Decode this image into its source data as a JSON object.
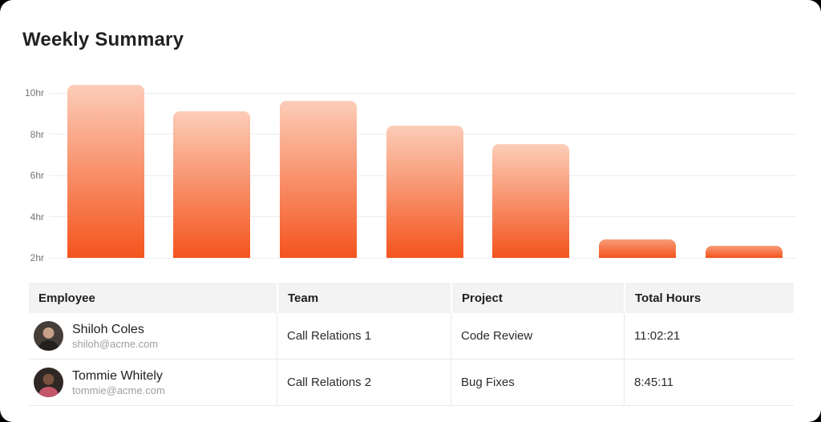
{
  "page": {
    "title": "Weekly Summary"
  },
  "chart_data": {
    "type": "bar",
    "title": "",
    "xlabel": "",
    "ylabel": "",
    "categories": [
      "",
      "",
      "",
      "",
      "",
      "",
      ""
    ],
    "values": [
      10.4,
      9.1,
      9.6,
      8.4,
      7.5,
      2.9,
      2.6
    ],
    "unit": "hr",
    "ylim": [
      2,
      10.5
    ],
    "yticks": [
      {
        "value": 10,
        "label": "10hr"
      },
      {
        "value": 8,
        "label": "8hr"
      },
      {
        "value": 6,
        "label": "6hr"
      },
      {
        "value": 4,
        "label": "4hr"
      },
      {
        "value": 2,
        "label": "2hr"
      }
    ],
    "grid": true,
    "legend": "none",
    "colors": {
      "bar_gradient_top": "#FCCDB8",
      "bar_gradient_top_short": "#F89B77",
      "bar_gradient_bottom": "#F4541D",
      "gridline": "#EDEDED",
      "tick_text": "#757575"
    }
  },
  "table": {
    "columns": [
      "Employee",
      "Team",
      "Project",
      "Total Hours"
    ],
    "rows": [
      {
        "name": "Shiloh Coles",
        "email": "shiloh@acme.com",
        "team": "Call Relations 1",
        "project": "Code Review",
        "total_hours": "11:02:21",
        "avatar": {
          "bg": "#453d38",
          "skin": "#c9a08a",
          "shirt": "#23201e"
        }
      },
      {
        "name": "Tommie Whitely",
        "email": "tommie@acme.com",
        "team": "Call Relations 2",
        "project": "Bug Fixes",
        "total_hours": "8:45:11",
        "avatar": {
          "bg": "#2e2723",
          "skin": "#7a523f",
          "shirt": "#c4566b"
        }
      }
    ]
  }
}
